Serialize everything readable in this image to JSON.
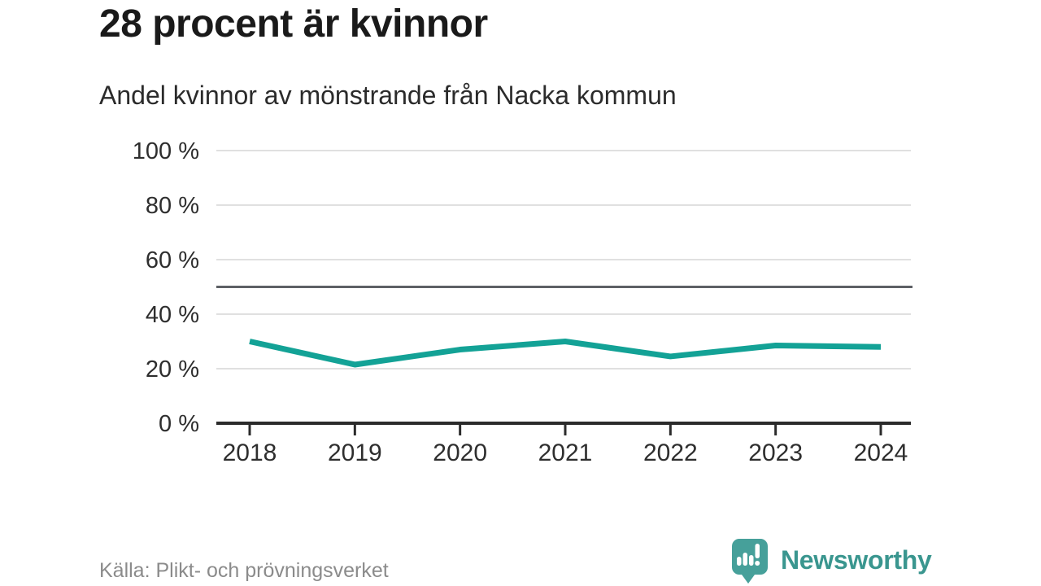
{
  "header": {
    "title": "28 procent är kvinnor",
    "subtitle": "Andel kvinnor av mönstrande från Nacka kommun"
  },
  "chart_data": {
    "type": "line",
    "title": "28 procent är kvinnor",
    "subtitle": "Andel kvinnor av mönstrande från Nacka kommun",
    "x": [
      "2018",
      "2019",
      "2020",
      "2021",
      "2022",
      "2023",
      "2024"
    ],
    "series": [
      {
        "name": "Andel kvinnor",
        "values": [
          30,
          21.5,
          27,
          30,
          24.5,
          28.5,
          28
        ]
      }
    ],
    "unit": "%",
    "ylim": [
      0,
      100
    ],
    "yticks": [
      0,
      20,
      40,
      60,
      80,
      100
    ],
    "ytick_suffix": " %",
    "reference_line_y": 50,
    "grid": "horizontal",
    "legend": "none",
    "colors": {
      "line": "#13a296",
      "gridline": "#e0e0e0",
      "reference_line": "#5d6065",
      "axis": "#2b2b2b",
      "tick_label": "#2e2e2e"
    }
  },
  "footer": {
    "source_label": "Källa: Plikt- och prövningsverket",
    "brand_name": "Newsworthy",
    "brand_color": "#3a968f",
    "logo_icon": "speech-bubble-bar-chart-exclamation",
    "logo_color": "#46a09a"
  }
}
